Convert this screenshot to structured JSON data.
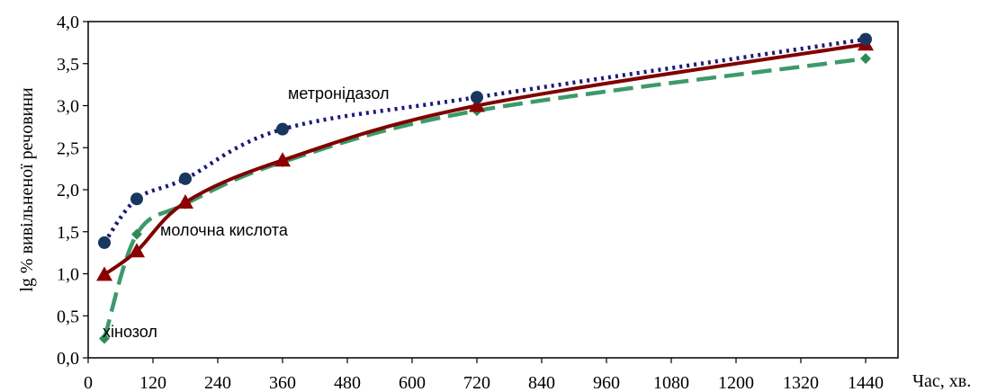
{
  "chart_data": {
    "type": "line",
    "title": "",
    "xlabel": "Час, хв.",
    "ylabel": "lg % вивільненої речовини",
    "xlim": [
      0,
      1500
    ],
    "ylim": [
      0,
      4.0
    ],
    "x_ticks": [
      0,
      120,
      240,
      360,
      480,
      600,
      720,
      840,
      960,
      1080,
      1200,
      1320,
      1440
    ],
    "x_tick_labels": [
      "0",
      "120",
      "240",
      "360",
      "480",
      "600",
      "720",
      "840",
      "960",
      "1080",
      "1200",
      "1320",
      "1440"
    ],
    "y_ticks": [
      0,
      0.5,
      1.0,
      1.5,
      2.0,
      2.5,
      3.0,
      3.5,
      4.0
    ],
    "y_tick_labels": [
      "0,0",
      "0,5",
      "1,0",
      "1,5",
      "2,0",
      "2,5",
      "3,0",
      "3,5",
      "4,0"
    ],
    "grid": false,
    "legend": "none",
    "series": [
      {
        "name": "метронідазол",
        "x": [
          30,
          90,
          180,
          360,
          720,
          1440
        ],
        "y": [
          1.37,
          1.89,
          2.13,
          2.72,
          3.1,
          3.79
        ],
        "color": "#1a1a7a",
        "marker": "circle",
        "marker_color": "#17375e",
        "line_style": "dotted"
      },
      {
        "name": "молочна кислота",
        "x": [
          30,
          90,
          180,
          360,
          720,
          1440
        ],
        "y": [
          0.99,
          1.27,
          1.85,
          2.35,
          3.0,
          3.73
        ],
        "color": "#800000",
        "marker": "triangle",
        "marker_color": "#8b0000",
        "line_style": "solid"
      },
      {
        "name": "хінозол",
        "x": [
          30,
          90,
          180,
          360,
          720,
          1440
        ],
        "y": [
          0.23,
          1.47,
          1.83,
          2.33,
          2.94,
          3.56
        ],
        "color": "#3c9a6a",
        "marker": "diamond",
        "marker_color": "#2e8b57",
        "line_style": "dashed"
      }
    ],
    "annotations": [
      {
        "text": "метронідазол",
        "series": "метронідазол"
      },
      {
        "text": "молочна кислота",
        "series": "молочна кислота"
      },
      {
        "text": "хінозол",
        "series": "хінозол"
      }
    ]
  }
}
